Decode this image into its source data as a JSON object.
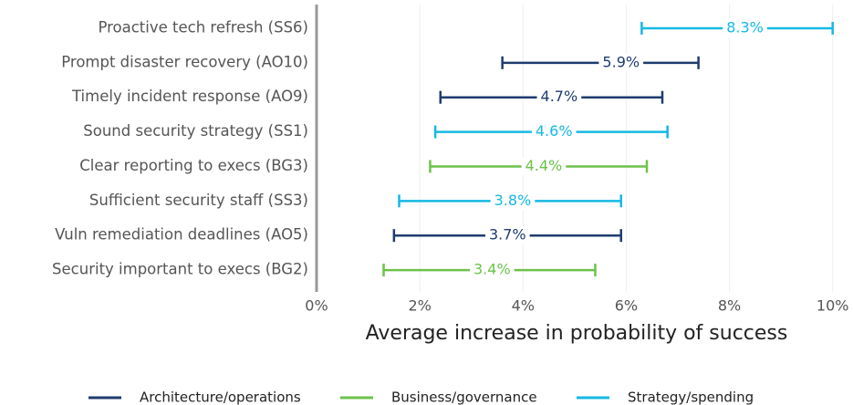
{
  "chart_data": {
    "type": "interval",
    "categories": [
      "Proactive tech refresh (SS6)",
      "Prompt disaster recovery (AO10)",
      "Timely incident response (AO9)",
      "Sound security strategy (SS1)",
      "Clear reporting to execs (BG3)",
      "Sufficient security staff (SS3)",
      "Vuln remediation deadlines (AO5)",
      "Security important to execs (BG2)"
    ],
    "series": [
      {
        "name": "Architecture/operations",
        "color": "#1f3c6e",
        "values": [
          null,
          5.9,
          4.7,
          null,
          null,
          null,
          3.7,
          null
        ],
        "value_labels": [
          null,
          "5.9%",
          "4.7%",
          null,
          null,
          null,
          "3.7%",
          null
        ],
        "low": [
          null,
          3.6,
          2.4,
          null,
          null,
          null,
          1.5,
          null
        ],
        "high": [
          null,
          7.4,
          6.7,
          null,
          null,
          null,
          5.9,
          null
        ]
      },
      {
        "name": "Business/governance",
        "color": "#6cc24a",
        "values": [
          null,
          null,
          null,
          null,
          4.4,
          null,
          null,
          3.4
        ],
        "value_labels": [
          null,
          null,
          null,
          null,
          "4.4%",
          null,
          null,
          "3.4%"
        ],
        "low": [
          null,
          null,
          null,
          null,
          2.2,
          null,
          null,
          1.3
        ],
        "high": [
          null,
          null,
          null,
          null,
          6.4,
          null,
          null,
          5.4
        ]
      },
      {
        "name": "Strategy/spending",
        "color": "#14b9e4",
        "values": [
          8.3,
          null,
          null,
          4.6,
          null,
          3.8,
          null,
          null
        ],
        "value_labels": [
          "8.3%",
          null,
          null,
          "4.6%",
          null,
          "3.8%",
          null,
          null
        ],
        "low": [
          6.3,
          null,
          null,
          2.3,
          null,
          1.6,
          null,
          null
        ],
        "high": [
          10.0,
          null,
          null,
          6.8,
          null,
          5.9,
          null,
          null
        ]
      }
    ],
    "xlabel": "Average increase in probability of success",
    "xlim": [
      0,
      10.2
    ],
    "xticks": [
      {
        "value": 0,
        "label": "0%"
      },
      {
        "value": 2,
        "label": "2%"
      },
      {
        "value": 4,
        "label": "4%"
      },
      {
        "value": 6,
        "label": "6%"
      },
      {
        "value": 8,
        "label": "8%"
      },
      {
        "value": 10,
        "label": "10%"
      }
    ],
    "grid": true
  }
}
